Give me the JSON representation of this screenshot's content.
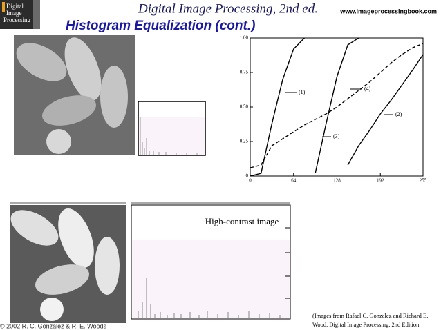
{
  "header": {
    "logo": [
      "Digital",
      "Image",
      "Processing"
    ],
    "title": "Digital Image Processing, 2nd ed.",
    "url": "www.imageprocessingbook.com",
    "subtitle": "Histogram Equalization (cont.)"
  },
  "histogram_label": "High-contrast image",
  "caption": [
    "(Images from Rafael C. Gonzalez and Richard E.",
    "Wood, Digital Image Processing, 2nd Edition."
  ],
  "footer": "© 2002 R. C. Gonzalez & R. E. Woods",
  "chart_data": {
    "type": "line",
    "x": [
      0,
      16,
      32,
      48,
      64,
      80,
      96,
      112,
      128,
      144,
      160,
      176,
      192,
      208,
      224,
      240,
      255
    ],
    "xlim": [
      0,
      255
    ],
    "xticks": [
      0,
      64,
      128,
      192,
      255
    ],
    "ylim": [
      0,
      1
    ],
    "yticks": [
      0,
      0.25,
      {
        "value": 0.5,
        "label": "0.50"
      },
      0.75,
      {
        "value": 1,
        "label": "1.00"
      }
    ],
    "series": [
      {
        "name": "(1)",
        "color": "#000000",
        "dashed": false,
        "values": [
          0,
          0.02,
          0.38,
          0.7,
          0.92,
          1.0,
          null,
          null,
          null,
          null,
          null,
          null,
          null,
          null,
          null,
          null,
          null
        ]
      },
      {
        "name": "(2)",
        "color": "#000000",
        "dashed": false,
        "values": [
          null,
          null,
          null,
          null,
          null,
          null,
          null,
          null,
          null,
          0.08,
          0.22,
          0.33,
          0.45,
          0.55,
          0.66,
          0.77,
          0.88
        ]
      },
      {
        "name": "(3)",
        "color": "#000000",
        "dashed": false,
        "values": [
          null,
          null,
          null,
          null,
          null,
          null,
          0.02,
          0.38,
          0.72,
          0.95,
          1.0,
          null,
          null,
          null,
          null,
          null,
          null
        ]
      },
      {
        "name": "(4)",
        "color": "#000000",
        "dashed": true,
        "values": [
          0.06,
          0.08,
          0.22,
          0.27,
          0.32,
          0.37,
          0.41,
          0.45,
          0.5,
          0.56,
          0.62,
          0.68,
          0.75,
          0.82,
          0.88,
          0.93,
          0.96
        ]
      }
    ]
  }
}
